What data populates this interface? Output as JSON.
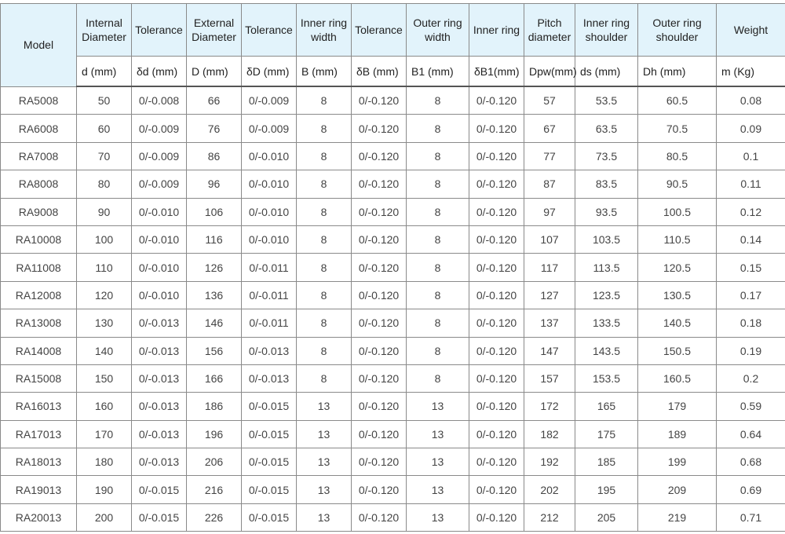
{
  "table": {
    "headers": [
      "Model",
      "Internal Diameter",
      "Tolerance",
      "External Diameter",
      "Tolerance",
      "Inner ring width",
      "Tolerance",
      "Outer ring width",
      "Inner ring",
      "Pitch diameter",
      "Inner ring shoulder",
      "Outer ring shoulder",
      "Weight"
    ],
    "units": [
      "d (mm)",
      "δd (mm)",
      "D (mm)",
      "δD (mm)",
      "B (mm)",
      "δB (mm)",
      "B1 (mm)",
      "δB1(mm)",
      "Dpw(mm)",
      "ds (mm)",
      "Dh (mm)",
      "m (Kg)"
    ],
    "colors": {
      "header_bg": "#e2f3fb",
      "border": "#8a8a8a"
    },
    "rows": [
      [
        "RA5008",
        "50",
        "0/-0.008",
        "66",
        "0/-0.009",
        "8",
        "0/-0.120",
        "8",
        "0/-0.120",
        "57",
        "53.5",
        "60.5",
        "0.08"
      ],
      [
        "RA6008",
        "60",
        "0/-0.009",
        "76",
        "0/-0.009",
        "8",
        "0/-0.120",
        "8",
        "0/-0.120",
        "67",
        "63.5",
        "70.5",
        "0.09"
      ],
      [
        "RA7008",
        "70",
        "0/-0.009",
        "86",
        "0/-0.010",
        "8",
        "0/-0.120",
        "8",
        "0/-0.120",
        "77",
        "73.5",
        "80.5",
        "0.1"
      ],
      [
        "RA8008",
        "80",
        "0/-0.009",
        "96",
        "0/-0.010",
        "8",
        "0/-0.120",
        "8",
        "0/-0.120",
        "87",
        "83.5",
        "90.5",
        "0.11"
      ],
      [
        "RA9008",
        "90",
        "0/-0.010",
        "106",
        "0/-0.010",
        "8",
        "0/-0.120",
        "8",
        "0/-0.120",
        "97",
        "93.5",
        "100.5",
        "0.12"
      ],
      [
        "RA10008",
        "100",
        "0/-0.010",
        "116",
        "0/-0.010",
        "8",
        "0/-0.120",
        "8",
        "0/-0.120",
        "107",
        "103.5",
        "110.5",
        "0.14"
      ],
      [
        "RA11008",
        "110",
        "0/-0.010",
        "126",
        "0/-0.011",
        "8",
        "0/-0.120",
        "8",
        "0/-0.120",
        "117",
        "113.5",
        "120.5",
        "0.15"
      ],
      [
        "RA12008",
        "120",
        "0/-0.010",
        "136",
        "0/-0.011",
        "8",
        "0/-0.120",
        "8",
        "0/-0.120",
        "127",
        "123.5",
        "130.5",
        "0.17"
      ],
      [
        "RA13008",
        "130",
        "0/-0.013",
        "146",
        "0/-0.011",
        "8",
        "0/-0.120",
        "8",
        "0/-0.120",
        "137",
        "133.5",
        "140.5",
        "0.18"
      ],
      [
        "RA14008",
        "140",
        "0/-0.013",
        "156",
        "0/-0.013",
        "8",
        "0/-0.120",
        "8",
        "0/-0.120",
        "147",
        "143.5",
        "150.5",
        "0.19"
      ],
      [
        "RA15008",
        "150",
        "0/-0.013",
        "166",
        "0/-0.013",
        "8",
        "0/-0.120",
        "8",
        "0/-0.120",
        "157",
        "153.5",
        "160.5",
        "0.2"
      ],
      [
        "RA16013",
        "160",
        "0/-0.013",
        "186",
        "0/-0.015",
        "13",
        "0/-0.120",
        "13",
        "0/-0.120",
        "172",
        "165",
        "179",
        "0.59"
      ],
      [
        "RA17013",
        "170",
        "0/-0.013",
        "196",
        "0/-0.015",
        "13",
        "0/-0.120",
        "13",
        "0/-0.120",
        "182",
        "175",
        "189",
        "0.64"
      ],
      [
        "RA18013",
        "180",
        "0/-0.013",
        "206",
        "0/-0.015",
        "13",
        "0/-0.120",
        "13",
        "0/-0.120",
        "192",
        "185",
        "199",
        "0.68"
      ],
      [
        "RA19013",
        "190",
        "0/-0.015",
        "216",
        "0/-0.015",
        "13",
        "0/-0.120",
        "13",
        "0/-0.120",
        "202",
        "195",
        "209",
        "0.69"
      ],
      [
        "RA20013",
        "200",
        "0/-0.015",
        "226",
        "0/-0.015",
        "13",
        "0/-0.120",
        "13",
        "0/-0.120",
        "212",
        "205",
        "219",
        "0.71"
      ]
    ]
  }
}
